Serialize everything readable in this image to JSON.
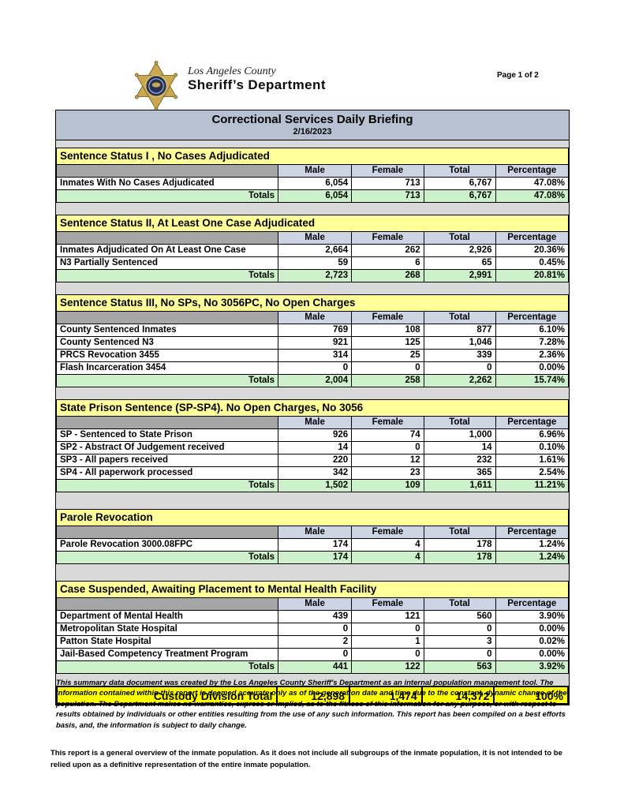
{
  "page": {
    "page_label": "Page 1 of 2"
  },
  "logo": {
    "county": "Los Angeles County",
    "department": "Sheriff’s Department"
  },
  "report": {
    "title": "Correctional Services Daily Briefing",
    "date": "2/16/2023",
    "columns": [
      "Male",
      "Female",
      "Total",
      "Percentage"
    ],
    "totals_label": "Totals",
    "sections": [
      {
        "title": "Sentence Status I , No Cases Adjudicated",
        "rows": [
          {
            "label": "Inmates With No Cases Adjudicated",
            "values": [
              "6,054",
              "713",
              "6,767",
              "47.08%"
            ]
          }
        ],
        "totals": [
          "6,054",
          "713",
          "6,767",
          "47.08%"
        ]
      },
      {
        "title": "Sentence Status II, At Least One Case Adjudicated",
        "rows": [
          {
            "label": "Inmates Adjudicated On At Least One Case",
            "values": [
              "2,664",
              "262",
              "2,926",
              "20.36%"
            ]
          },
          {
            "label": "N3 Partially Sentenced",
            "values": [
              "59",
              "6",
              "65",
              "0.45%"
            ]
          }
        ],
        "totals": [
          "2,723",
          "268",
          "2,991",
          "20.81%"
        ]
      },
      {
        "title": "Sentence Status III, No SPs, No 3056PC, No Open Charges",
        "rows": [
          {
            "label": "County Sentenced Inmates",
            "values": [
              "769",
              "108",
              "877",
              "6.10%"
            ]
          },
          {
            "label": "County Sentenced N3",
            "values": [
              "921",
              "125",
              "1,046",
              "7.28%"
            ]
          },
          {
            "label": "PRCS Revocation 3455",
            "values": [
              "314",
              "25",
              "339",
              "2.36%"
            ]
          },
          {
            "label": "Flash Incarceration 3454",
            "values": [
              "0",
              "0",
              "0",
              "0.00%"
            ]
          }
        ],
        "totals": [
          "2,004",
          "258",
          "2,262",
          "15.74%"
        ]
      },
      {
        "title": "State Prison Sentence (SP-SP4). No Open Charges, No 3056",
        "rows": [
          {
            "label": "SP - Sentenced to State Prison",
            "values": [
              "926",
              "74",
              "1,000",
              "6.96%"
            ]
          },
          {
            "label": "SP2 - Abstract Of Judgement received",
            "values": [
              "14",
              "0",
              "14",
              "0.10%"
            ]
          },
          {
            "label": "SP3 - All papers received",
            "values": [
              "220",
              "12",
              "232",
              "1.61%"
            ]
          },
          {
            "label": "SP4 - All paperwork processed",
            "values": [
              "342",
              "23",
              "365",
              "2.54%"
            ]
          }
        ],
        "totals": [
          "1,502",
          "109",
          "1,611",
          "11.21%"
        ]
      },
      {
        "title": "Parole Revocation",
        "rows": [
          {
            "label": "Parole Revocation 3000.08FPC",
            "values": [
              "174",
              "4",
              "178",
              "1.24%"
            ]
          }
        ],
        "totals": [
          "174",
          "4",
          "178",
          "1.24%"
        ]
      },
      {
        "title": "Case Suspended, Awaiting Placement to Mental Health Facility",
        "rows": [
          {
            "label": "Department of Mental Health",
            "values": [
              "439",
              "121",
              "560",
              "3.90%"
            ]
          },
          {
            "label": "Metropolitan State Hospital",
            "values": [
              "0",
              "0",
              "0",
              "0.00%"
            ]
          },
          {
            "label": "Patton State Hospital",
            "values": [
              "2",
              "1",
              "3",
              "0.02%"
            ]
          },
          {
            "label": "Jail-Based Competency Treatment Program",
            "values": [
              "0",
              "0",
              "0",
              "0.00%"
            ]
          }
        ],
        "totals": [
          "441",
          "122",
          "563",
          "3.92%"
        ]
      }
    ],
    "grand_total": {
      "label": "Custody Division Total",
      "values": [
        "12,898",
        "1,474",
        "14,372",
        "100%"
      ]
    }
  },
  "footer": {
    "disclaimer": "This summary data document was created by the Los Angeles County Sheriff's Department as an internal population management tool.  The information contained within this report is deemed accurate only as of the generation date and time due to the constant, dynamic change of the population.  The Department makes no warranties, express or implied, as to the fitness of this information for any purpose, or with respect to results obtained by individuals or other entities resulting from the use of any such information.  This report has been compiled on a best efforts basis, and, the information is subject to daily change.",
    "note": "This report is a general overview of the inmate population.  As it does not include all subgroups of the inmate population, it is not intended to be relied upon as a definitive representation of the entire inmate population."
  },
  "colors": {
    "title_bar": "#b6c2d1",
    "column_header": "#cdd4e3",
    "header_corner": "#a6a6a6",
    "section_header": "#ffff99",
    "totals_row": "#ccf1cb",
    "grand_total_row": "#ffff00",
    "section_gap": "#d9d9d9",
    "badge_gold": "#c9a850",
    "badge_navy": "#25305a"
  }
}
